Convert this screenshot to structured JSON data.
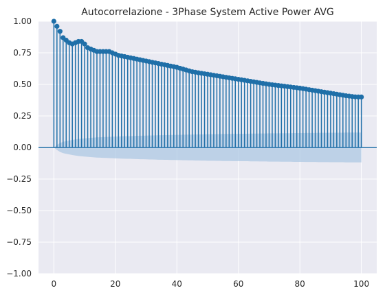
{
  "chart_data": {
    "type": "stem",
    "title": "Autocorrelazione - 3Phase System Active Power AVG",
    "xlabel": "",
    "ylabel": "",
    "xlim": [
      -5,
      105
    ],
    "ylim": [
      -1.0,
      1.0
    ],
    "x_ticks": [
      0,
      20,
      40,
      60,
      80,
      100
    ],
    "y_ticks": [
      "1.00",
      "0.75",
      "0.50",
      "0.25",
      "0.00",
      "-0.25",
      "-0.50",
      "-0.75",
      "-1.00"
    ],
    "grid": true,
    "colors": {
      "plot_background": "#eaeaf2",
      "grid": "#ffffff",
      "stem": "#1f6fa8",
      "marker": "#1f6fa8",
      "confidence_band": "#a9c6e2",
      "zero_line": "#1f6fa8"
    },
    "acf_lags": [
      0,
      1,
      2,
      3,
      4,
      5,
      6,
      7,
      8,
      9,
      10,
      11,
      12,
      13,
      14,
      15,
      16,
      17,
      18,
      19,
      20,
      21,
      22,
      23,
      24,
      25,
      26,
      27,
      28,
      29,
      30,
      31,
      32,
      33,
      34,
      35,
      36,
      37,
      38,
      39,
      40,
      41,
      42,
      43,
      44,
      45,
      46,
      47,
      48,
      49,
      50,
      51,
      52,
      53,
      54,
      55,
      56,
      57,
      58,
      59,
      60,
      61,
      62,
      63,
      64,
      65,
      66,
      67,
      68,
      69,
      70,
      71,
      72,
      73,
      74,
      75,
      76,
      77,
      78,
      79,
      80,
      81,
      82,
      83,
      84,
      85,
      86,
      87,
      88,
      89,
      90,
      91,
      92,
      93,
      94,
      95,
      96,
      97,
      98,
      99,
      100
    ],
    "acf_values": [
      1.0,
      0.96,
      0.92,
      0.87,
      0.85,
      0.83,
      0.82,
      0.83,
      0.84,
      0.84,
      0.82,
      0.79,
      0.78,
      0.77,
      0.76,
      0.76,
      0.76,
      0.76,
      0.76,
      0.75,
      0.74,
      0.73,
      0.725,
      0.72,
      0.715,
      0.71,
      0.705,
      0.7,
      0.695,
      0.69,
      0.685,
      0.68,
      0.675,
      0.67,
      0.665,
      0.66,
      0.655,
      0.65,
      0.645,
      0.64,
      0.635,
      0.628,
      0.621,
      0.614,
      0.607,
      0.6,
      0.596,
      0.592,
      0.588,
      0.584,
      0.58,
      0.576,
      0.572,
      0.568,
      0.564,
      0.56,
      0.556,
      0.552,
      0.548,
      0.544,
      0.54,
      0.536,
      0.532,
      0.528,
      0.524,
      0.52,
      0.516,
      0.512,
      0.508,
      0.504,
      0.5,
      0.497,
      0.494,
      0.491,
      0.488,
      0.485,
      0.482,
      0.479,
      0.476,
      0.473,
      0.47,
      0.466,
      0.462,
      0.458,
      0.454,
      0.45,
      0.446,
      0.442,
      0.438,
      0.434,
      0.43,
      0.426,
      0.422,
      0.418,
      0.414,
      0.41,
      0.407,
      0.404,
      0.401,
      0.4,
      0.4
    ],
    "confidence_upper": [
      0.0,
      0.02,
      0.035,
      0.045,
      0.05,
      0.055,
      0.06,
      0.064,
      0.067,
      0.07,
      0.072,
      0.074,
      0.076,
      0.078,
      0.08,
      0.081,
      0.082,
      0.083,
      0.084,
      0.085,
      0.086,
      0.087,
      0.088,
      0.089,
      0.09,
      0.09,
      0.091,
      0.092,
      0.093,
      0.093,
      0.094,
      0.095,
      0.095,
      0.096,
      0.097,
      0.097,
      0.098,
      0.098,
      0.099,
      0.099,
      0.1,
      0.1,
      0.101,
      0.101,
      0.102,
      0.102,
      0.103,
      0.103,
      0.104,
      0.104,
      0.105,
      0.105,
      0.105,
      0.106,
      0.106,
      0.107,
      0.107,
      0.107,
      0.108,
      0.108,
      0.108,
      0.109,
      0.109,
      0.109,
      0.11,
      0.11,
      0.11,
      0.111,
      0.111,
      0.111,
      0.112,
      0.112,
      0.112,
      0.112,
      0.113,
      0.113,
      0.113,
      0.113,
      0.114,
      0.114,
      0.114,
      0.114,
      0.115,
      0.115,
      0.115,
      0.115,
      0.116,
      0.116,
      0.116,
      0.116,
      0.117,
      0.117,
      0.117,
      0.117,
      0.117,
      0.118,
      0.118,
      0.118,
      0.118,
      0.118,
      0.118
    ]
  }
}
